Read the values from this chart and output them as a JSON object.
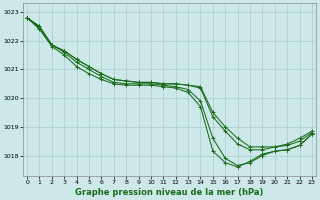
{
  "title": "Graphe pression niveau de la mer (hPa)",
  "background_color": "#cce8e8",
  "grid_color": "#aacece",
  "line_color": "#1a6b1a",
  "x_values": [
    0,
    1,
    2,
    3,
    4,
    5,
    6,
    7,
    8,
    9,
    10,
    11,
    12,
    13,
    14,
    15,
    16,
    17,
    18,
    19,
    20,
    21,
    22,
    23
  ],
  "series": [
    [
      1022.8,
      1022.5,
      1021.85,
      1021.65,
      1021.35,
      1021.1,
      1020.85,
      1020.65,
      1020.6,
      1020.55,
      1020.55,
      1020.5,
      1020.5,
      1020.45,
      1020.4,
      1019.5,
      1019.0,
      1018.6,
      1018.3,
      1018.3,
      1018.3,
      1018.4,
      1018.6,
      1018.85
    ],
    [
      1022.8,
      1022.5,
      1021.85,
      1021.65,
      1021.35,
      1021.1,
      1020.85,
      1020.65,
      1020.6,
      1020.55,
      1020.55,
      1020.5,
      1020.5,
      1020.45,
      1020.35,
      1019.35,
      1018.85,
      1018.4,
      1018.2,
      1018.2,
      1018.3,
      1018.35,
      1018.5,
      1018.8
    ],
    [
      1022.8,
      1022.45,
      1021.85,
      1021.6,
      1021.25,
      1021.0,
      1020.75,
      1020.55,
      1020.5,
      1020.5,
      1020.5,
      1020.45,
      1020.4,
      1020.3,
      1019.9,
      1018.6,
      1017.9,
      1017.65,
      1017.75,
      1018.0,
      1018.15,
      1018.2,
      1018.35,
      1018.75
    ],
    [
      1022.8,
      1022.4,
      1021.8,
      1021.5,
      1021.1,
      1020.85,
      1020.65,
      1020.5,
      1020.45,
      1020.45,
      1020.45,
      1020.4,
      1020.35,
      1020.2,
      1019.7,
      1018.15,
      1017.75,
      1017.6,
      1017.8,
      1018.05,
      1018.15,
      1018.2,
      1018.35,
      1018.75
    ]
  ],
  "ylim": [
    1017.3,
    1023.3
  ],
  "yticks": [
    1018,
    1019,
    1020,
    1021,
    1022,
    1023
  ],
  "xlim": [
    -0.3,
    23.3
  ],
  "xticks": [
    0,
    1,
    2,
    3,
    4,
    5,
    6,
    7,
    8,
    9,
    10,
    11,
    12,
    13,
    14,
    15,
    16,
    17,
    18,
    19,
    20,
    21,
    22,
    23
  ],
  "marker": "+",
  "markersize": 3.5,
  "linewidth": 0.75,
  "title_fontsize": 6.0,
  "tick_fontsize": 4.5
}
